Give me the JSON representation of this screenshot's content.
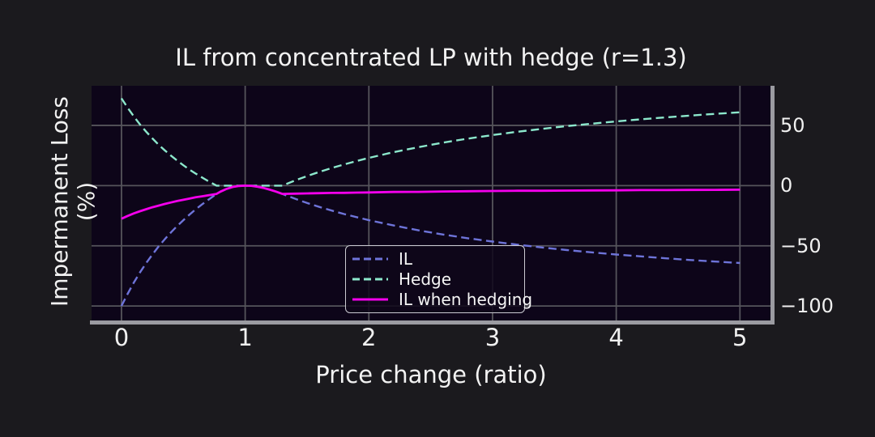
{
  "figure": {
    "title": "IL from concentrated LP with hedge (r=1.3)",
    "xlabel": "Price change (ratio)",
    "ylabel": "Impermanent Loss (%)"
  },
  "colors": {
    "figure_bg": "#1b1a1e",
    "plot_bg": "#0d0519",
    "grid": "#55545b",
    "spine": "#9b9ba1",
    "text": "#f2f2f2",
    "il_line": "#6e74d9",
    "hedge_line": "#8ce8cc",
    "il_hedged_line": "#f400ec"
  },
  "chart_data": {
    "type": "line",
    "title": "IL from concentrated LP with hedge (r=1.3)",
    "xlabel": "Price change (ratio)",
    "ylabel": "Impermanent Loss (%)",
    "grid": true,
    "legend_position": "inside lower-center",
    "xlim": [
      -0.242,
      5.247
    ],
    "ylim": [
      -112,
      82.9
    ],
    "x_ticks": [
      0,
      1,
      2,
      3,
      4,
      5
    ],
    "x_tick_labels": [
      "0",
      "1",
      "2",
      "3",
      "4",
      "5"
    ],
    "y_ticks": [
      50,
      0,
      -50,
      -100
    ],
    "y_tick_labels": [
      "50",
      "0",
      "−50",
      "−100"
    ],
    "x": [
      0,
      0.05,
      0.1,
      0.15,
      0.2,
      0.25,
      0.3,
      0.35,
      0.4,
      0.45,
      0.5,
      0.55,
      0.6,
      0.65,
      0.7,
      0.769,
      0.8,
      0.85,
      0.9,
      0.95,
      1,
      1.05,
      1.1,
      1.15,
      1.2,
      1.25,
      1.3,
      1.4,
      1.5,
      1.6,
      1.7,
      1.8,
      1.9,
      2,
      2.2,
      2.4,
      2.6,
      2.8,
      3,
      3.2,
      3.4,
      3.6,
      3.8,
      4,
      4.2,
      4.4,
      4.6,
      4.8,
      5
    ],
    "series": [
      {
        "name": "IL",
        "color": "#6e74d9",
        "dash": true,
        "values": [
          -100,
          -89.8,
          -80.5,
          -72.1,
          -64.3,
          -57.2,
          -50.6,
          -44.5,
          -38.9,
          -33.6,
          -28.7,
          -24.1,
          -19.7,
          -15.7,
          -11.9,
          -6.9,
          -5.0,
          -2.7,
          -1.1,
          -0.3,
          0,
          -0.2,
          -0.9,
          -2.0,
          -3.4,
          -5.0,
          -6.9,
          -10.8,
          -14.4,
          -17.7,
          -20.7,
          -23.6,
          -26.2,
          -28.7,
          -33.1,
          -37.1,
          -40.6,
          -43.7,
          -46.5,
          -49.0,
          -51.4,
          -53.5,
          -55.4,
          -57.2,
          -58.8,
          -60.4,
          -61.8,
          -63.1,
          -64.3
        ]
      },
      {
        "name": "Hedge",
        "color": "#8ce8cc",
        "dash": true,
        "values": [
          72.5,
          64.6,
          57.4,
          50.8,
          44.7,
          39.2,
          34.0,
          29.3,
          24.9,
          20.8,
          16.9,
          13.3,
          10.0,
          6.8,
          3.8,
          0,
          0,
          0,
          0,
          0,
          0,
          0,
          0,
          0,
          0,
          0,
          0,
          4.1,
          7.9,
          11.4,
          14.6,
          17.6,
          20.4,
          23.0,
          27.8,
          31.9,
          35.7,
          39.0,
          42.0,
          44.7,
          47.1,
          49.4,
          51.4,
          53.3,
          55.1,
          56.7,
          58.2,
          59.6,
          60.9
        ]
      },
      {
        "name": "IL when hedging",
        "color": "#f400ec",
        "dash": false,
        "values": [
          -27.5,
          -25.2,
          -23.1,
          -21.3,
          -19.6,
          -18.0,
          -16.6,
          -15.2,
          -14.0,
          -12.8,
          -11.8,
          -10.8,
          -9.7,
          -8.9,
          -8.1,
          -6.9,
          -5.0,
          -2.7,
          -1.1,
          -0.3,
          0,
          -0.2,
          -0.9,
          -2.0,
          -3.4,
          -5.0,
          -6.9,
          -6.7,
          -6.5,
          -6.3,
          -6.1,
          -6.0,
          -5.8,
          -5.7,
          -5.3,
          -5.2,
          -4.9,
          -4.7,
          -4.5,
          -4.3,
          -4.3,
          -4.1,
          -4.0,
          -3.9,
          -3.7,
          -3.7,
          -3.6,
          -3.5,
          -3.4
        ]
      }
    ]
  },
  "legend": {
    "items": [
      {
        "label": "IL"
      },
      {
        "label": "Hedge"
      },
      {
        "label": "IL when hedging"
      }
    ]
  }
}
